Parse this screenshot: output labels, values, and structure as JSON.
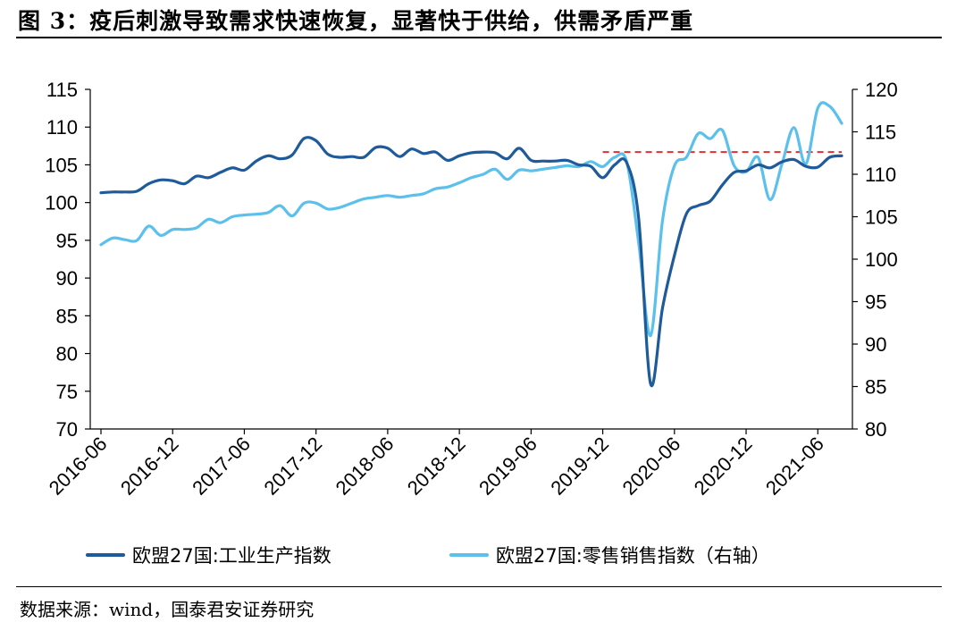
{
  "page": {
    "title": "图 3：疫后刺激导致需求快速恢复，显著快于供给，供需矛盾严重",
    "source": "数据来源：wind，国泰君安证券研究"
  },
  "chart_data": {
    "type": "line",
    "title": "",
    "x_tick_labels": [
      "2016-06",
      "2016-12",
      "2017-06",
      "2017-12",
      "2018-06",
      "2018-12",
      "2019-06",
      "2019-12",
      "2020-06",
      "2020-12",
      "2021-06"
    ],
    "left_axis": {
      "ylim": [
        70,
        115
      ],
      "ticks": [
        70,
        75,
        80,
        85,
        90,
        95,
        100,
        105,
        110,
        115
      ]
    },
    "right_axis": {
      "ylim": [
        80,
        120
      ],
      "ticks": [
        80,
        85,
        90,
        95,
        100,
        105,
        110,
        115,
        120
      ]
    },
    "legend_position": "bottom",
    "grid": false,
    "series": [
      {
        "name": "欧盟27国:工业生产指数",
        "axis": "left",
        "color": "#1f5a9a",
        "x": [
          "2016-06",
          "2016-07",
          "2016-08",
          "2016-09",
          "2016-10",
          "2016-11",
          "2016-12",
          "2017-01",
          "2017-02",
          "2017-03",
          "2017-04",
          "2017-05",
          "2017-06",
          "2017-07",
          "2017-08",
          "2017-09",
          "2017-10",
          "2017-11",
          "2017-12",
          "2018-01",
          "2018-02",
          "2018-03",
          "2018-04",
          "2018-05",
          "2018-06",
          "2018-07",
          "2018-08",
          "2018-09",
          "2018-10",
          "2018-11",
          "2018-12",
          "2019-01",
          "2019-02",
          "2019-03",
          "2019-04",
          "2019-05",
          "2019-06",
          "2019-07",
          "2019-08",
          "2019-09",
          "2019-10",
          "2019-11",
          "2019-12",
          "2020-01",
          "2020-02",
          "2020-03",
          "2020-04",
          "2020-05",
          "2020-06",
          "2020-07",
          "2020-08",
          "2020-09",
          "2020-10",
          "2020-11",
          "2020-12",
          "2021-01",
          "2021-02",
          "2021-03",
          "2021-04",
          "2021-05",
          "2021-06",
          "2021-07",
          "2021-08"
        ],
        "values": [
          101.3,
          101.4,
          101.4,
          101.5,
          102.5,
          103.0,
          102.9,
          102.5,
          103.5,
          103.3,
          104.0,
          104.6,
          104.3,
          105.5,
          106.2,
          105.8,
          106.3,
          108.5,
          108.2,
          106.4,
          106.0,
          106.1,
          106.0,
          107.3,
          107.2,
          106.1,
          107.1,
          106.5,
          106.7,
          105.6,
          106.2,
          106.6,
          106.7,
          106.6,
          105.8,
          107.2,
          105.6,
          105.5,
          105.5,
          105.6,
          105.0,
          104.8,
          103.3,
          105.0,
          105.3,
          98.0,
          76.0,
          86.0,
          93.0,
          98.5,
          99.6,
          100.2,
          102.3,
          104.0,
          104.2,
          105.0,
          104.6,
          105.4,
          105.7,
          104.8,
          104.7,
          106.0,
          106.2
        ]
      },
      {
        "name": "欧盟27国:零售销售指数（右轴）",
        "axis": "right",
        "color": "#5bc0eb",
        "x": [
          "2016-06",
          "2016-07",
          "2016-08",
          "2016-09",
          "2016-10",
          "2016-11",
          "2016-12",
          "2017-01",
          "2017-02",
          "2017-03",
          "2017-04",
          "2017-05",
          "2017-06",
          "2017-07",
          "2017-08",
          "2017-09",
          "2017-10",
          "2017-11",
          "2017-12",
          "2018-01",
          "2018-02",
          "2018-03",
          "2018-04",
          "2018-05",
          "2018-06",
          "2018-07",
          "2018-08",
          "2018-09",
          "2018-10",
          "2018-11",
          "2018-12",
          "2019-01",
          "2019-02",
          "2019-03",
          "2019-04",
          "2019-05",
          "2019-06",
          "2019-07",
          "2019-08",
          "2019-09",
          "2019-10",
          "2019-11",
          "2019-12",
          "2020-01",
          "2020-02",
          "2020-03",
          "2020-04",
          "2020-05",
          "2020-06",
          "2020-07",
          "2020-08",
          "2020-09",
          "2020-10",
          "2020-11",
          "2020-12",
          "2021-01",
          "2021-02",
          "2021-03",
          "2021-04",
          "2021-05",
          "2021-06",
          "2021-07",
          "2021-08"
        ],
        "values": [
          101.7,
          102.5,
          102.3,
          102.2,
          103.9,
          102.8,
          103.5,
          103.5,
          103.7,
          104.7,
          104.3,
          105.0,
          105.2,
          105.3,
          105.5,
          106.3,
          105.1,
          106.6,
          106.6,
          105.9,
          106.1,
          106.6,
          107.1,
          107.3,
          107.5,
          107.3,
          107.5,
          107.7,
          108.3,
          108.5,
          109.0,
          109.6,
          110.0,
          110.6,
          109.4,
          110.5,
          110.4,
          110.6,
          110.8,
          111.0,
          110.9,
          111.5,
          110.9,
          112.0,
          111.5,
          102.0,
          91.0,
          104.5,
          111.0,
          112.0,
          114.8,
          114.2,
          115.2,
          111.0,
          110.3,
          112.0,
          107.0,
          111.2,
          115.5,
          111.2,
          117.8,
          118.0,
          116.0
        ]
      }
    ],
    "reference_line": {
      "axis": "left",
      "value": 106.7,
      "from": "2019-12",
      "to": "2021-08",
      "color": "#e03030",
      "style": "dashed"
    }
  }
}
